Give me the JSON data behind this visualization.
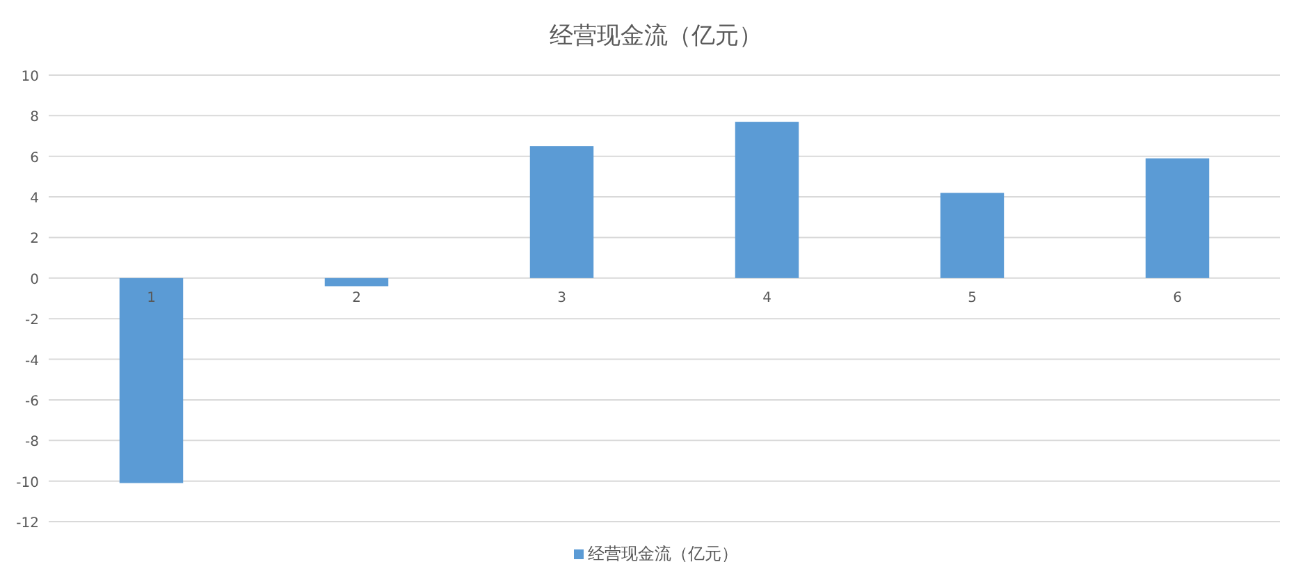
{
  "chart_data": {
    "type": "bar",
    "title": "经营现金流（亿元）",
    "categories": [
      "1",
      "2",
      "3",
      "4",
      "5",
      "6"
    ],
    "series": [
      {
        "name": "经营现金流（亿元）",
        "color": "#5b9bd5",
        "values": [
          -10.1,
          -0.4,
          6.5,
          7.7,
          4.2,
          5.9
        ]
      }
    ],
    "ylim": [
      -12,
      10
    ],
    "yticks": [
      -12,
      -10,
      -8,
      -6,
      -4,
      -2,
      0,
      2,
      4,
      6,
      8,
      10
    ],
    "grid": "y",
    "legend": "bottom"
  }
}
